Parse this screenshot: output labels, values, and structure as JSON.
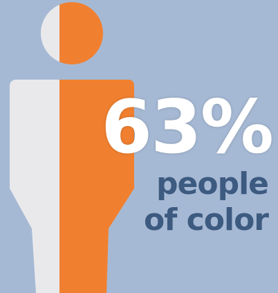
{
  "stat": {
    "percent_text": "63%",
    "percent_value": 63,
    "label_line_1": "people",
    "label_line_2": "of color"
  },
  "colors": {
    "background": "#a6b9d4",
    "figure_light": "#e9e9ec",
    "figure_accent": "#f08030",
    "percent_text": "#ffffff",
    "label_text": "#3d5a80"
  },
  "icons": {
    "figure": "person-icon"
  }
}
